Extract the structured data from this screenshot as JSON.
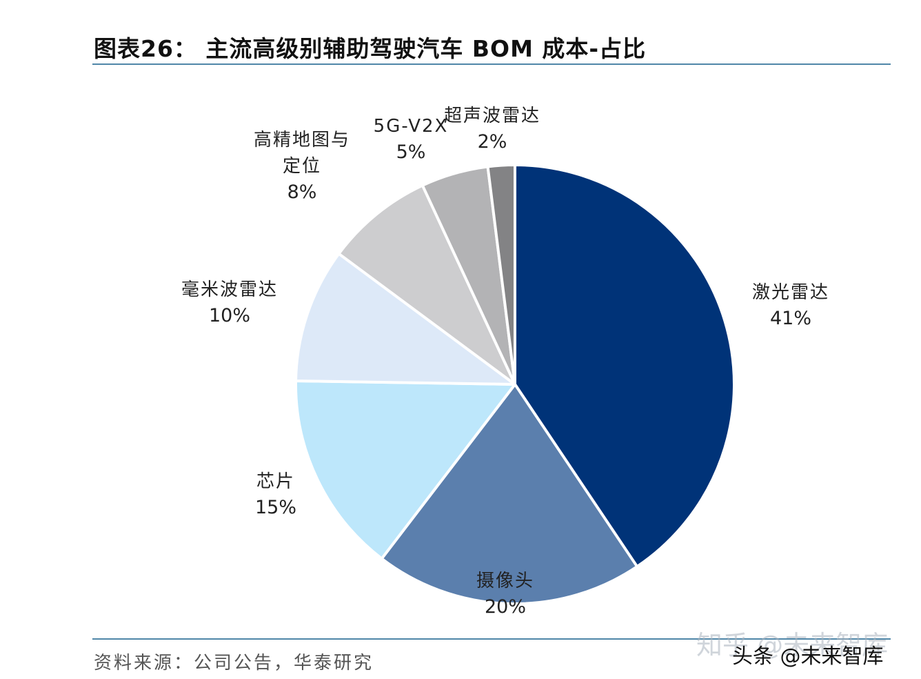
{
  "header": {
    "title": "图表26：  主流高级别辅助驾驶汽车 BOM 成本-占比"
  },
  "footer": {
    "source": "资料来源：公司公告，华泰研究",
    "watermark_zhihu": "知乎 @未来智库",
    "watermark_toutiao": "头条 @未来智库"
  },
  "chart_data": {
    "type": "pie",
    "title": "主流高级别辅助驾驶汽车 BOM 成本-占比",
    "start": "12 o'clock",
    "direction": "clockwise",
    "slices": [
      {
        "name": "激光雷达",
        "value": 41,
        "label": "41%",
        "color": "#003378"
      },
      {
        "name": "摄像头",
        "value": 20,
        "label": "20%",
        "color": "#5b7fad"
      },
      {
        "name": "芯片",
        "value": 15,
        "label": "15%",
        "color": "#bde7fb"
      },
      {
        "name": "毫米波雷达",
        "value": 10,
        "label": "10%",
        "color": "#dde9f8"
      },
      {
        "name": "高精地图与定位",
        "name_lines": [
          "高精地图与",
          "定位"
        ],
        "value": 8,
        "label": "8%",
        "color": "#cdcdcf"
      },
      {
        "name": "5G-V2X",
        "value": 5,
        "label": "5%",
        "color": "#b3b3b5"
      },
      {
        "name": "超声波雷达",
        "value": 2,
        "label": "2%",
        "color": "#838385"
      }
    ]
  }
}
